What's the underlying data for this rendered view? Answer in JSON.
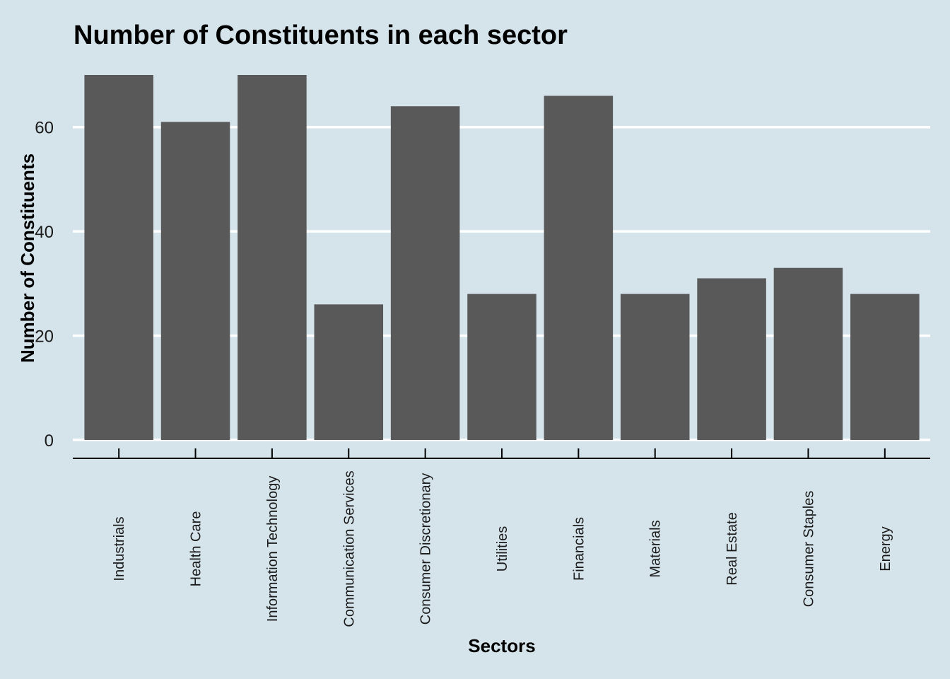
{
  "chart_data": {
    "type": "bar",
    "title": "Number of Constituents in each sector",
    "xlabel": "Sectors",
    "ylabel": "Number of Constituents",
    "categories": [
      "Industrials",
      "Health Care",
      "Information Technology",
      "Communication Services",
      "Consumer Discretionary",
      "Utilities",
      "Financials",
      "Materials",
      "Real Estate",
      "Consumer Staples",
      "Energy"
    ],
    "values": [
      70,
      61,
      70,
      26,
      64,
      28,
      66,
      28,
      31,
      33,
      28
    ],
    "ylim": [
      0,
      70
    ],
    "yticks": [
      0,
      20,
      40,
      60
    ],
    "ytick_labels": [
      "0",
      "20",
      "40",
      "60"
    ],
    "grid": true,
    "legend": "none"
  },
  "colors": {
    "background": "#d5e4eb",
    "bar": "#595959",
    "grid": "#ffffff",
    "axis": "#000000",
    "text": "#000000"
  }
}
